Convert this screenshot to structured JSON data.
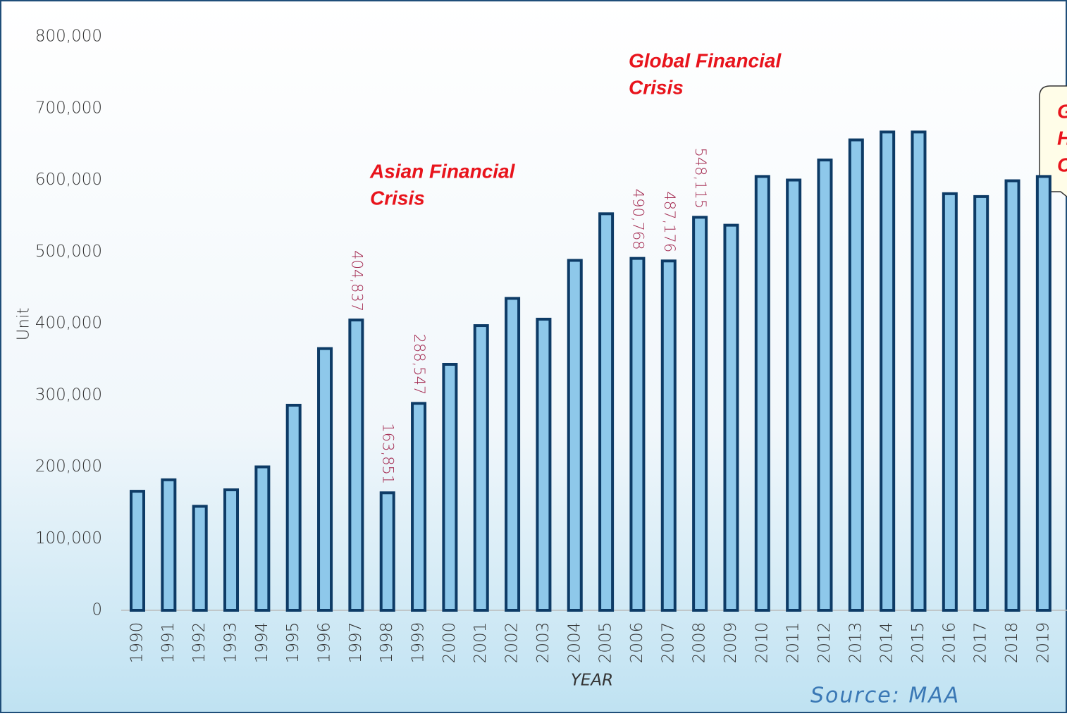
{
  "chart_data": {
    "type": "bar",
    "y_label": "Unit",
    "x_label": "YEAR",
    "source": "Source: MAA",
    "annotations": [
      {
        "lines": [
          "Asian Financial",
          "Crisis"
        ]
      },
      {
        "lines": [
          "Global Financial",
          "Crisis"
        ]
      },
      {
        "lines": [
          "Global",
          "Health",
          "Crisis"
        ]
      }
    ],
    "categories": [
      "1990",
      "1991",
      "1992",
      "1993",
      "1994",
      "1995",
      "1996",
      "1997",
      "1998",
      "1999",
      "2000",
      "2001",
      "2002",
      "2003",
      "2004",
      "2005",
      "2006",
      "2007",
      "2008",
      "2009",
      "2010",
      "2011",
      "2012",
      "2013",
      "2014",
      "2015",
      "2016",
      "2017",
      "2018",
      "2019"
    ],
    "values": [
      166000,
      182000,
      145000,
      168000,
      200000,
      286000,
      365000,
      404837,
      163851,
      288547,
      343000,
      397000,
      435000,
      406000,
      488000,
      553000,
      490768,
      487176,
      548115,
      537000,
      605000,
      600000,
      628000,
      656000,
      667000,
      667000,
      581000,
      577000,
      599000,
      605000
    ],
    "value_labels": [
      null,
      null,
      null,
      null,
      null,
      null,
      null,
      "404,837",
      "163,851",
      "288,547",
      null,
      null,
      null,
      null,
      null,
      null,
      "490,768",
      "487,176",
      "548,115",
      null,
      null,
      null,
      null,
      null,
      null,
      null,
      null,
      null,
      null,
      null
    ],
    "color": "#8ec8ea",
    "edge_color": "#0d3b66",
    "label_color": "#a3284f",
    "annotation_color": "#e8141c",
    "ylim": [
      0,
      800000
    ],
    "yticks": [
      0,
      {
        "value": 100000,
        "label": "100,000"
      },
      {
        "value": 200000,
        "label": "200,000"
      },
      {
        "value": 300000,
        "label": "300,000"
      },
      {
        "value": 400000,
        "label": "400,000"
      },
      {
        "value": 500000,
        "label": "500,000"
      },
      {
        "value": 600000,
        "label": "600,000"
      },
      {
        "value": 700000,
        "label": "700,000"
      },
      {
        "value": 800000,
        "label": "800,000"
      }
    ],
    "grid": false
  }
}
